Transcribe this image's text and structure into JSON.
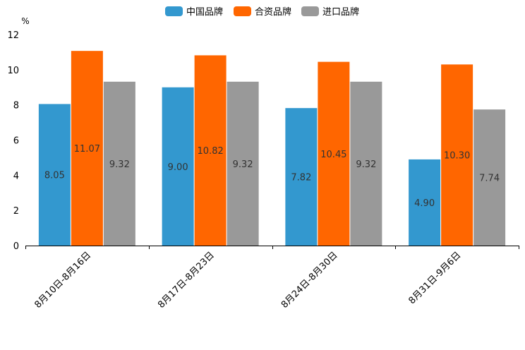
{
  "chart_data": {
    "type": "bar",
    "unit": "%",
    "categories": [
      "8月10日-8月16日",
      "8月17日-8月23日",
      "8月24日-8月30日",
      "8月31日-9月6日"
    ],
    "series": [
      {
        "name": "中国品牌",
        "color": "#3398cf",
        "values": [
          8.05,
          9.0,
          7.82,
          4.9
        ],
        "labels": [
          "8.05",
          "9.00",
          "7.82",
          "4.90"
        ]
      },
      {
        "name": "合资品牌",
        "color": "#ff6600",
        "values": [
          11.07,
          10.82,
          10.45,
          10.3
        ],
        "labels": [
          "11.07",
          "10.82",
          "10.45",
          "10.30"
        ]
      },
      {
        "name": "进口品牌",
        "color": "#999999",
        "values": [
          9.32,
          9.32,
          9.32,
          7.74
        ],
        "labels": [
          "9.32",
          "9.32",
          "9.32",
          "7.74"
        ]
      }
    ],
    "ylim": [
      0,
      12
    ],
    "yticks": [
      "0",
      "2",
      "4",
      "6",
      "8",
      "10",
      "12"
    ],
    "legend_position": "top-center",
    "grid": false
  }
}
